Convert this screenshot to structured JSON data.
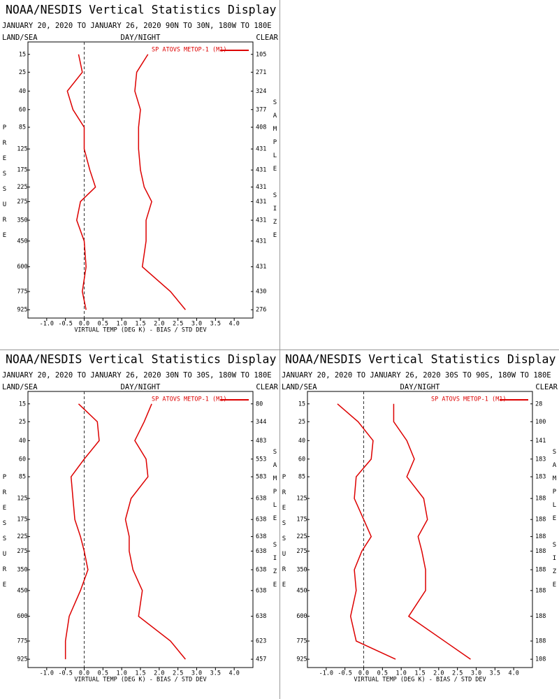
{
  "chart_data": [
    {
      "type": "line",
      "title": "NOAA/NESDIS Vertical Statistics Display",
      "subtitle": "JANUARY 20, 2020 TO JANUARY 26, 2020 90N TO 30N, 180W TO 180E",
      "corner_labels": [
        "LAND/SEA",
        "DAY/NIGHT",
        "CLEAR"
      ],
      "y_label": "PRESSURE",
      "y2_label": "SAMPLE SIZE",
      "x_label": "VIRTUAL TEMP (DEG K) - BIAS / STD DEV",
      "y": [
        15,
        25,
        40,
        60,
        85,
        125,
        175,
        225,
        275,
        350,
        450,
        600,
        775,
        925
      ],
      "sample_size": [
        105,
        271,
        324,
        377,
        408,
        431,
        431,
        431,
        431,
        431,
        431,
        431,
        430,
        276
      ],
      "series": [
        {
          "name": "SP ATOVS METOP-1 (M1)",
          "color": "#dd0000",
          "bias": [
            -0.15,
            -0.05,
            -0.45,
            -0.3,
            0.0,
            0.0,
            0.15,
            0.3,
            -0.1,
            -0.2,
            0.0,
            0.05,
            -0.05,
            0.05
          ],
          "std_dev": [
            1.7,
            1.4,
            1.35,
            1.5,
            1.45,
            1.45,
            1.5,
            1.6,
            1.8,
            1.65,
            1.65,
            1.55,
            2.3,
            2.7
          ]
        }
      ],
      "xlim": [
        -1.5,
        4.5
      ],
      "xticks": [
        {
          "value": -1,
          "label": "-1.0"
        },
        -0.5,
        {
          "value": 0,
          "label": "0.0"
        },
        0.5,
        {
          "value": 1,
          "label": "1.0"
        },
        1.5,
        {
          "value": 2,
          "label": "2.0"
        },
        2.5,
        {
          "value": 3,
          "label": "3.0"
        },
        3.5,
        {
          "value": 4,
          "label": "4.0"
        }
      ],
      "ylim": [
        10,
        1000
      ],
      "yscale": "power",
      "yscale_exponent": 0.286,
      "zero_line": true
    },
    {
      "type": "line",
      "title": "NOAA/NESDIS Vertical Statistics Display",
      "subtitle": "JANUARY 20, 2020 TO JANUARY 26, 2020 30N TO 30S, 180W TO 180E",
      "corner_labels": [
        "LAND/SEA",
        "DAY/NIGHT",
        "CLEAR"
      ],
      "y_label": "PRESSURE",
      "y2_label": "SAMPLE SIZE",
      "x_label": "VIRTUAL TEMP (DEG K) - BIAS / STD DEV",
      "y": [
        15,
        25,
        40,
        60,
        85,
        125,
        175,
        225,
        275,
        350,
        450,
        600,
        775,
        925
      ],
      "sample_size": [
        80,
        344,
        483,
        553,
        583,
        638,
        638,
        638,
        638,
        638,
        638,
        638,
        623,
        457
      ],
      "series": [
        {
          "name": "SP ATOVS METOP-1 (M1)",
          "color": "#dd0000",
          "bias": [
            -0.15,
            0.35,
            0.4,
            0.0,
            -0.35,
            -0.3,
            -0.25,
            -0.1,
            0.0,
            0.1,
            -0.1,
            -0.4,
            -0.5,
            -0.5
          ],
          "std_dev": [
            1.8,
            1.6,
            1.35,
            1.65,
            1.7,
            1.25,
            1.1,
            1.2,
            1.2,
            1.3,
            1.55,
            1.45,
            2.3,
            2.7
          ]
        }
      ],
      "xlim": [
        -1.5,
        4.5
      ],
      "xticks": [
        {
          "value": -1,
          "label": "-1.0"
        },
        -0.5,
        {
          "value": 0,
          "label": "0.0"
        },
        0.5,
        {
          "value": 1,
          "label": "1.0"
        },
        1.5,
        {
          "value": 2,
          "label": "2.0"
        },
        2.5,
        {
          "value": 3,
          "label": "3.0"
        },
        3.5,
        {
          "value": 4,
          "label": "4.0"
        }
      ],
      "ylim": [
        10,
        1000
      ],
      "yscale": "power",
      "yscale_exponent": 0.286,
      "zero_line": true
    },
    {
      "type": "line",
      "title": "NOAA/NESDIS Vertical Statistics Display",
      "subtitle": "JANUARY 20, 2020 TO JANUARY 26, 2020 30S TO 90S, 180W TO 180E",
      "corner_labels": [
        "LAND/SEA",
        "DAY/NIGHT",
        "CLEAR"
      ],
      "y_label": "PRESSURE",
      "y2_label": "SAMPLE SIZE",
      "x_label": "VIRTUAL TEMP (DEG K) - BIAS / STD DEV",
      "y": [
        15,
        25,
        40,
        60,
        85,
        125,
        175,
        225,
        275,
        350,
        450,
        600,
        775,
        925
      ],
      "sample_size": [
        28,
        100,
        141,
        183,
        183,
        188,
        188,
        188,
        188,
        188,
        188,
        188,
        188,
        108
      ],
      "series": [
        {
          "name": "SP ATOVS METOP-1 (M1)",
          "color": "#dd0000",
          "bias": [
            -0.7,
            -0.15,
            0.25,
            0.2,
            -0.2,
            -0.25,
            0.0,
            0.2,
            -0.05,
            -0.25,
            -0.2,
            -0.35,
            -0.2,
            0.85
          ],
          "std_dev": [
            0.8,
            0.8,
            1.15,
            1.35,
            1.15,
            1.6,
            1.7,
            1.45,
            1.55,
            1.65,
            1.65,
            1.2,
            2.15,
            2.85
          ]
        }
      ],
      "xlim": [
        -1.5,
        4.5
      ],
      "xticks": [
        {
          "value": -1,
          "label": "-1.0"
        },
        -0.5,
        {
          "value": 0,
          "label": "0.0"
        },
        0.5,
        {
          "value": 1,
          "label": "1.0"
        },
        1.5,
        {
          "value": 2,
          "label": "2.0"
        },
        2.5,
        {
          "value": 3,
          "label": "3.0"
        },
        3.5,
        {
          "value": 4,
          "label": "4.0"
        }
      ],
      "ylim": [
        10,
        1000
      ],
      "yscale": "power",
      "yscale_exponent": 0.286,
      "zero_line": true
    }
  ]
}
